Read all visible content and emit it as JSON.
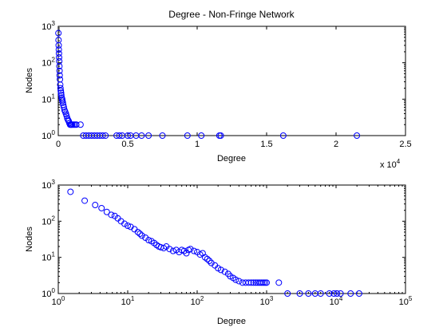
{
  "figure": {
    "background": "#ffffff"
  },
  "chart_data": [
    {
      "type": "scatter",
      "title": "Degree - Non-Fringe Network",
      "xlabel": "Degree",
      "ylabel": "Nodes",
      "xscale": "linear",
      "yscale": "log",
      "xlim": [
        0,
        25000
      ],
      "ylim": [
        1,
        1000
      ],
      "x_multiplier_label": {
        "base": "x 10",
        "exp": "4"
      },
      "xticks": [
        {
          "value": 0,
          "label": "0"
        },
        {
          "value": 5000,
          "label": "0.5"
        },
        {
          "value": 10000,
          "label": "1"
        },
        {
          "value": 15000,
          "label": "1.5"
        },
        {
          "value": 20000,
          "label": "2"
        },
        {
          "value": 25000,
          "label": "2.5"
        }
      ],
      "yticks": [
        {
          "value": 1,
          "base": "10",
          "exp": "0"
        },
        {
          "value": 10,
          "base": "10",
          "exp": "1"
        },
        {
          "value": 100,
          "base": "10",
          "exp": "2"
        },
        {
          "value": 1000,
          "base": "10",
          "exp": "3"
        }
      ],
      "marker": "open-circle",
      "color": "#0000ff",
      "grid": false,
      "series": [
        {
          "x": [
            10,
            20,
            30,
            40,
            50,
            60,
            70,
            80,
            90,
            100,
            120,
            140,
            160,
            180,
            200,
            220,
            250,
            280,
            300,
            330,
            360,
            400,
            450,
            500,
            550,
            600,
            650,
            700,
            750,
            800,
            850,
            900,
            950,
            1000,
            1100,
            1200,
            1300,
            1600,
            1800,
            2000,
            2200,
            2400,
            2600,
            2800,
            3000,
            3200,
            3400,
            4200,
            4400,
            4600,
            5000,
            5200,
            5600,
            6000,
            6500,
            7500,
            9300,
            10300,
            11600,
            11700,
            16200,
            21500
          ],
          "y": [
            650,
            420,
            300,
            230,
            180,
            140,
            110,
            80,
            60,
            45,
            35,
            25,
            20,
            17,
            15,
            13,
            11,
            10,
            9,
            8,
            7,
            6,
            5,
            4.5,
            4,
            3.5,
            3,
            2.7,
            2.5,
            2.2,
            2,
            2,
            2,
            2,
            2,
            2,
            2,
            2,
            1,
            1,
            1,
            1,
            1,
            1,
            1,
            1,
            1,
            1,
            1,
            1,
            1,
            1,
            1,
            1,
            1,
            1,
            1,
            1,
            1,
            1,
            1,
            1
          ]
        }
      ]
    },
    {
      "type": "scatter",
      "xlabel": "Degree",
      "ylabel": "Nodes",
      "xscale": "log",
      "yscale": "log",
      "xlim": [
        1,
        100000
      ],
      "ylim": [
        1,
        1000
      ],
      "xticks": [
        {
          "value": 1,
          "base": "10",
          "exp": "0"
        },
        {
          "value": 10,
          "base": "10",
          "exp": "1"
        },
        {
          "value": 100,
          "base": "10",
          "exp": "2"
        },
        {
          "value": 1000,
          "base": "10",
          "exp": "3"
        },
        {
          "value": 10000,
          "base": "10",
          "exp": "4"
        },
        {
          "value": 100000,
          "base": "10",
          "exp": "5"
        }
      ],
      "yticks": [
        {
          "value": 1,
          "base": "10",
          "exp": "0"
        },
        {
          "value": 10,
          "base": "10",
          "exp": "1"
        },
        {
          "value": 100,
          "base": "10",
          "exp": "2"
        },
        {
          "value": 1000,
          "base": "10",
          "exp": "3"
        }
      ],
      "marker": "open-circle",
      "color": "#0000ff",
      "grid": false,
      "series": [
        {
          "x": [
            1.5,
            2.4,
            3.4,
            4.2,
            5.0,
            5.8,
            6.5,
            7.2,
            8.0,
            9.0,
            10,
            11,
            12.5,
            14,
            15,
            16,
            18,
            20,
            22,
            24,
            26,
            28,
            30,
            33,
            36,
            40,
            45,
            50,
            55,
            60,
            65,
            70,
            75,
            80,
            90,
            100,
            110,
            120,
            130,
            140,
            150,
            160,
            180,
            200,
            220,
            250,
            280,
            300,
            330,
            360,
            400,
            450,
            500,
            550,
            600,
            650,
            700,
            750,
            800,
            850,
            900,
            950,
            1000,
            1500,
            2000,
            3000,
            4000,
            5000,
            6000,
            8000,
            9300,
            10300,
            11600,
            16200,
            21500
          ],
          "y": [
            650,
            370,
            280,
            230,
            180,
            150,
            140,
            120,
            100,
            85,
            75,
            70,
            60,
            50,
            45,
            40,
            35,
            30,
            28,
            25,
            22,
            20,
            19,
            18,
            20,
            17,
            15,
            16,
            14,
            16,
            15,
            13,
            16,
            17,
            15,
            14,
            12,
            13,
            10,
            9,
            8,
            7,
            6,
            5,
            4.5,
            4,
            3.5,
            3,
            2.7,
            2.4,
            2.2,
            2,
            2,
            2,
            2,
            2,
            2,
            2,
            2,
            2,
            2,
            2,
            2,
            2,
            1,
            1,
            1,
            1,
            1,
            1,
            1,
            1,
            1,
            1,
            1
          ]
        }
      ]
    }
  ]
}
